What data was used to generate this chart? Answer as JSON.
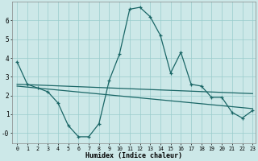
{
  "background_color": "#cce8e8",
  "grid_color": "#99cccc",
  "line_color": "#1a6666",
  "xlabel": "Humidex (Indice chaleur)",
  "xlim": [
    -0.5,
    23.3
  ],
  "ylim": [
    -0.55,
    7.0
  ],
  "yticks": [
    0,
    1,
    2,
    3,
    4,
    5,
    6
  ],
  "ytick_labels": [
    "-0",
    "1",
    "2",
    "3",
    "4",
    "5",
    "6"
  ],
  "xticks": [
    0,
    1,
    2,
    3,
    4,
    5,
    6,
    7,
    8,
    9,
    10,
    11,
    12,
    13,
    14,
    15,
    16,
    17,
    18,
    19,
    20,
    21,
    22,
    23
  ],
  "line1_x": [
    0,
    1,
    2,
    3,
    4,
    5,
    6,
    7,
    8,
    9,
    10,
    11,
    12,
    13,
    14,
    15,
    16,
    17,
    18,
    19,
    20,
    21,
    22,
    23
  ],
  "line1_y": [
    3.8,
    2.6,
    2.4,
    2.2,
    1.6,
    0.4,
    -0.2,
    -0.2,
    0.5,
    2.8,
    4.2,
    6.6,
    6.7,
    6.2,
    5.2,
    3.2,
    4.3,
    2.6,
    2.5,
    1.9,
    1.9,
    1.1,
    0.8,
    1.2
  ],
  "line2_x": [
    0,
    23
  ],
  "line2_y": [
    2.6,
    2.1
  ],
  "line3_x": [
    0,
    23
  ],
  "line3_y": [
    2.5,
    1.3
  ]
}
